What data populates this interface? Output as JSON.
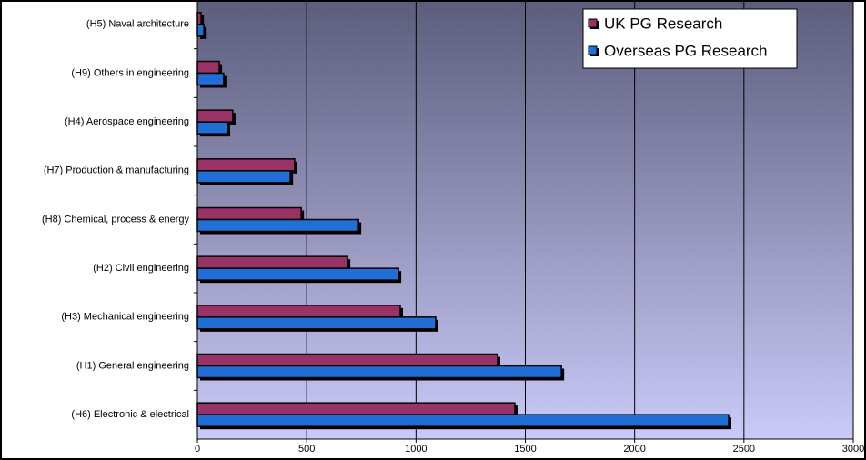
{
  "chart_data": {
    "type": "bar",
    "orientation": "horizontal",
    "categories": [
      "(H5) Naval architecture",
      "(H9) Others in engineering",
      "(H4) Aerospace engineering",
      "(H7) Production & manufacturing",
      "(H8) Chemical, process & energy",
      "(H2) Civil engineering",
      "(H3) Mechanical engineering",
      "(H1) General engineering",
      "(H6) Electronic & electrical"
    ],
    "series": [
      {
        "name": "UK PG Research",
        "color": "#993366",
        "values": [
          17,
          100,
          162,
          445,
          475,
          687,
          928,
          1373,
          1452
        ]
      },
      {
        "name": "Overseas PG Research",
        "color": "#1f6fd6",
        "values": [
          30,
          120,
          137,
          425,
          737,
          920,
          1090,
          1665,
          2430
        ]
      }
    ],
    "xlim": [
      0,
      3000
    ],
    "xticks": [
      0,
      500,
      1000,
      1500,
      2000,
      2500,
      3000
    ],
    "grid": true
  }
}
